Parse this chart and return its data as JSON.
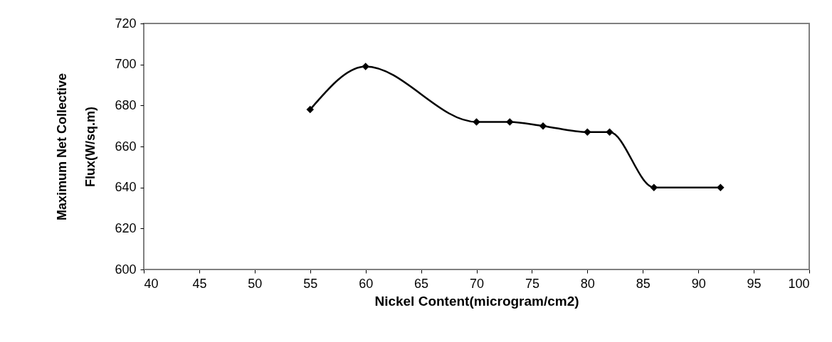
{
  "chart_data": {
    "type": "line",
    "xlabel": "Nickel Content(microgram/cm2)",
    "ylabel": "Maximum Net Collective\nFlux(W/sq.m)",
    "x": [
      55,
      60,
      70,
      73,
      76,
      80,
      82,
      86,
      92
    ],
    "series": [
      {
        "color": "#000000",
        "values": [
          678,
          699,
          672,
          672,
          670,
          667,
          667,
          640,
          640
        ]
      }
    ],
    "xlim": [
      40,
      100
    ],
    "xticks": [
      40,
      45,
      50,
      55,
      60,
      65,
      70,
      75,
      80,
      85,
      90,
      95,
      100
    ],
    "ylim": [
      600,
      720
    ],
    "yticks": [
      600,
      620,
      640,
      660,
      680,
      700,
      720
    ],
    "marker": "diamond",
    "line_style": "solid",
    "grid": false
  }
}
